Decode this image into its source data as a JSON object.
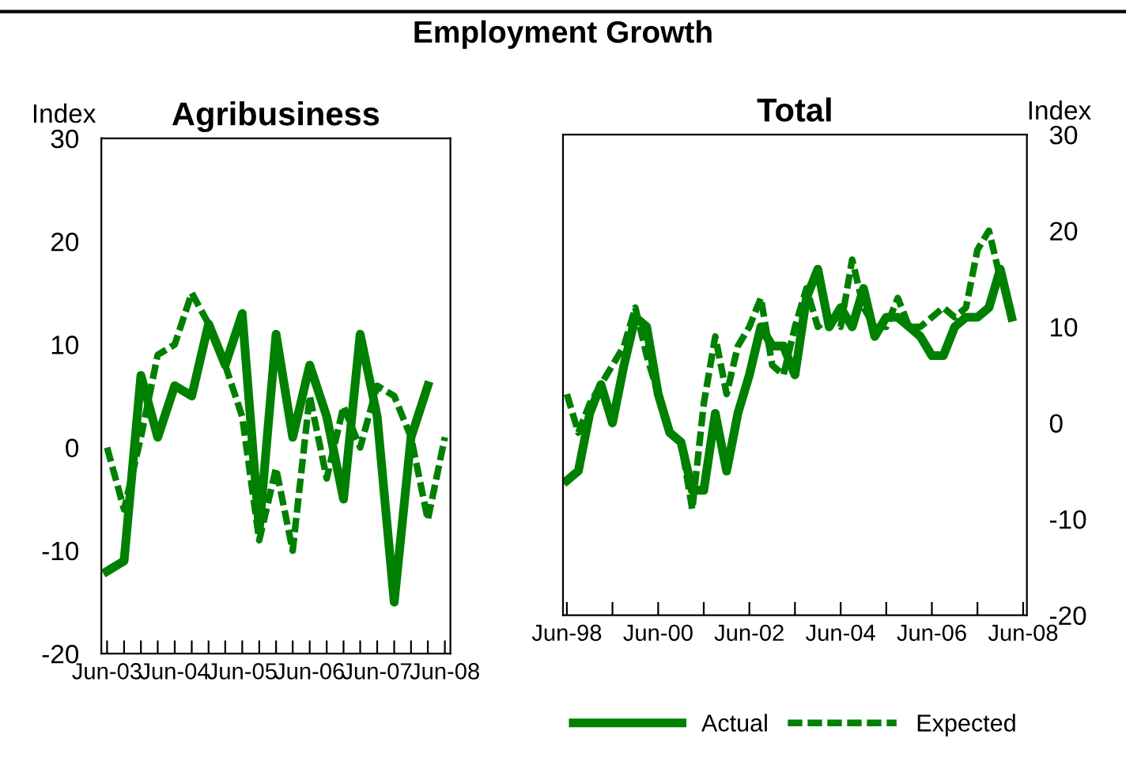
{
  "chart_data": [
    {
      "type": "line",
      "title": "Agribusiness",
      "ylabel": "Index",
      "annotations": [
        "Employment Growth"
      ],
      "x": [
        "2003-06",
        "2003-09",
        "2003-12",
        "2004-03",
        "2004-06",
        "2004-09",
        "2004-12",
        "2005-03",
        "2005-06",
        "2005-09",
        "2005-12",
        "2006-03",
        "2006-06",
        "2006-09",
        "2006-12",
        "2007-03",
        "2007-06",
        "2007-09",
        "2007-12",
        "2008-03",
        "2008-06"
      ],
      "series": [
        {
          "color": "#008000",
          "line_style": "solid",
          "values": [
            -12,
            -11,
            7,
            1,
            6,
            5,
            12,
            8,
            13,
            -8,
            11,
            1,
            8,
            3,
            -5,
            11,
            3,
            -15,
            1,
            6,
            null
          ]
        },
        {
          "color": "#008000",
          "line_style": "dashed",
          "values": [
            0,
            -6,
            1,
            9,
            10,
            15,
            12,
            8,
            3,
            -9,
            -2,
            -10,
            5,
            -3,
            4,
            0,
            6,
            5,
            1,
            -7,
            1
          ]
        }
      ],
      "xlim": [
        "2003-05",
        "2008-07"
      ],
      "xticks": [
        {
          "value": "2003-06",
          "label": "Jun-03"
        },
        {
          "value": "2003-09",
          "label": null
        },
        {
          "value": "2003-12",
          "label": null
        },
        {
          "value": "2004-03",
          "label": null
        },
        {
          "value": "2004-06",
          "label": "Jun-04"
        },
        {
          "value": "2004-09",
          "label": null
        },
        {
          "value": "2004-12",
          "label": null
        },
        {
          "value": "2005-03",
          "label": null
        },
        {
          "value": "2005-06",
          "label": "Jun-05"
        },
        {
          "value": "2005-09",
          "label": null
        },
        {
          "value": "2005-12",
          "label": null
        },
        {
          "value": "2006-03",
          "label": null
        },
        {
          "value": "2006-06",
          "label": "Jun-06"
        },
        {
          "value": "2006-09",
          "label": null
        },
        {
          "value": "2006-12",
          "label": null
        },
        {
          "value": "2007-03",
          "label": null
        },
        {
          "value": "2007-06",
          "label": "Jun-07"
        },
        {
          "value": "2007-09",
          "label": null
        },
        {
          "value": "2007-12",
          "label": null
        },
        {
          "value": "2008-03",
          "label": null
        },
        {
          "value": "2008-06",
          "label": "Jun-08"
        }
      ],
      "ylim": [
        -20,
        30
      ],
      "yticks": [
        -20,
        -10,
        0,
        10,
        20,
        30
      ],
      "grid": false
    },
    {
      "type": "line",
      "title": "Total",
      "ylabel": "Index",
      "legend": "bottom",
      "x": [
        "1998-06",
        "1998-09",
        "1998-12",
        "1999-03",
        "1999-06",
        "1999-09",
        "1999-12",
        "2000-03",
        "2000-06",
        "2000-09",
        "2000-12",
        "2001-03",
        "2001-06",
        "2001-09",
        "2001-12",
        "2002-03",
        "2002-06",
        "2002-09",
        "2002-12",
        "2003-03",
        "2003-06",
        "2003-09",
        "2003-12",
        "2004-03",
        "2004-06",
        "2004-09",
        "2004-12",
        "2005-03",
        "2005-06",
        "2005-09",
        "2005-12",
        "2006-03",
        "2006-06",
        "2006-09",
        "2006-12",
        "2007-03",
        "2007-06",
        "2007-09",
        "2007-12",
        "2008-03"
      ],
      "series": [
        {
          "name": "Actual",
          "color": "#008000",
          "line_style": "solid",
          "values": [
            -6,
            -5,
            1,
            4,
            0,
            6,
            11,
            10,
            3,
            -1,
            -2,
            -7,
            -7,
            1,
            -5,
            1,
            5,
            10,
            8,
            8,
            5,
            13,
            16,
            10,
            12,
            10,
            14,
            9,
            11,
            11,
            10,
            9,
            7,
            7,
            10,
            11,
            11,
            12,
            16,
            11
          ]
        },
        {
          "name": "Expected",
          "color": "#008000",
          "line_style": "dashed",
          "values": [
            3,
            -1,
            2,
            4,
            6,
            8,
            12,
            7,
            3,
            -1,
            -2,
            -9,
            2,
            9,
            3,
            8,
            10,
            13,
            6,
            5,
            10,
            14,
            10,
            11,
            10,
            17,
            12,
            10,
            10,
            13,
            10,
            10,
            11,
            12,
            11,
            12,
            18,
            20,
            15,
            null
          ]
        }
      ],
      "xlim": [
        "1998-05",
        "2008-07"
      ],
      "xticks": [
        {
          "value": "1998-06",
          "label": "Jun-98"
        },
        {
          "value": "1999-06",
          "label": null
        },
        {
          "value": "2000-06",
          "label": "Jun-00"
        },
        {
          "value": "2001-06",
          "label": null
        },
        {
          "value": "2002-06",
          "label": "Jun-02"
        },
        {
          "value": "2003-06",
          "label": null
        },
        {
          "value": "2004-06",
          "label": "Jun-04"
        },
        {
          "value": "2005-06",
          "label": null
        },
        {
          "value": "2006-06",
          "label": "Jun-06"
        },
        {
          "value": "2007-06",
          "label": null
        },
        {
          "value": "2008-06",
          "label": "Jun-08"
        }
      ],
      "ylim": [
        -20,
        30
      ],
      "yticks": [
        -20,
        -10,
        0,
        10,
        20,
        30
      ],
      "grid": false
    }
  ]
}
